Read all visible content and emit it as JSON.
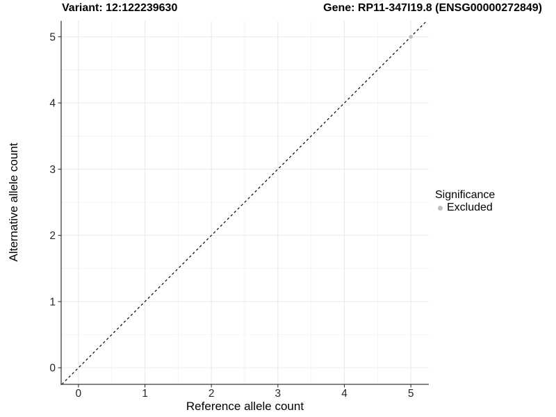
{
  "chart_data": {
    "type": "scatter",
    "title_left": "Variant: 12:122239630",
    "title_right": "Gene: RP11-347I19.8 (ENSG00000272849)",
    "xlabel": "Reference allele count",
    "ylabel": "Alternative allele count",
    "xlim": [
      -0.26,
      5.27
    ],
    "ylim": [
      -0.25,
      5.24
    ],
    "x_ticks": [
      0,
      1,
      2,
      3,
      4,
      5
    ],
    "y_ticks": [
      0,
      1,
      2,
      3,
      4,
      5
    ],
    "x_minor_ticks": [
      0.5,
      1.5,
      2.5,
      3.5,
      4.5
    ],
    "y_minor_ticks": [
      0.5,
      1.5,
      2.5,
      3.5,
      4.5
    ],
    "grid": "major-and-minor",
    "legend_position": "right",
    "identity_line": {
      "slope": 1,
      "intercept": 0,
      "style": "dashed",
      "color": "#000000"
    },
    "series": [
      {
        "name": "Excluded",
        "marker": "circle",
        "color": "#bdbdbd",
        "points": [
          {
            "x": 5,
            "y": 5
          }
        ]
      }
    ],
    "legend": {
      "title": "Significance",
      "items": [
        {
          "label": "Excluded",
          "color": "#bdbdbd",
          "marker": "circle-icon"
        }
      ]
    }
  },
  "styles": {
    "background": "#ffffff",
    "grid_major_color": "#e9e9e9",
    "grid_minor_color": "#f4f4f4",
    "axis_line_color": "#3c3c3c",
    "tick_color": "#333333",
    "tick_label_color": "#262626",
    "point_color": "#bdbdbd",
    "dashed_line_color": "#000000"
  }
}
